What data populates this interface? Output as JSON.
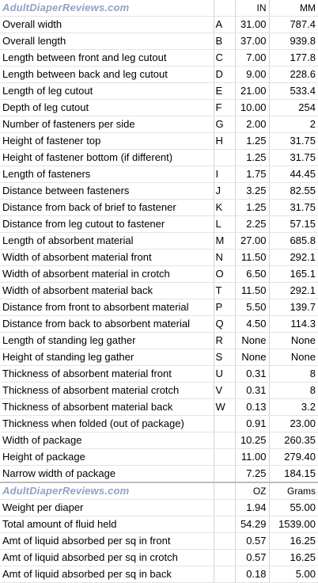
{
  "header": {
    "site": "AdultDiaperReviews.com",
    "unit_in": "IN",
    "unit_mm": "MM"
  },
  "dimensions": [
    {
      "label": "Overall width",
      "code": "A",
      "in": "31.00",
      "mm": "787.4"
    },
    {
      "label": "Overall length",
      "code": "B",
      "in": "37.00",
      "mm": "939.8"
    },
    {
      "label": "Length between front and leg cutout",
      "code": "C",
      "in": "7.00",
      "mm": "177.8"
    },
    {
      "label": "Length between back and leg cutout",
      "code": "D",
      "in": "9.00",
      "mm": "228.6"
    },
    {
      "label": "Length of leg cutout",
      "code": "E",
      "in": "21.00",
      "mm": "533.4"
    },
    {
      "label": "Depth of leg cutout",
      "code": "F",
      "in": "10.00",
      "mm": "254"
    },
    {
      "label": "Number of fasteners per side",
      "code": "G",
      "in": "2.00",
      "mm": "2"
    },
    {
      "label": "Height of fastener top",
      "code": "H",
      "in": "1.25",
      "mm": "31.75"
    },
    {
      "label": "Height of fastener bottom (if different)",
      "code": "",
      "in": "1.25",
      "mm": "31.75"
    },
    {
      "label": "Length of fasteners",
      "code": "I",
      "in": "1.75",
      "mm": "44.45"
    },
    {
      "label": "Distance between fasteners",
      "code": "J",
      "in": "3.25",
      "mm": "82.55"
    },
    {
      "label": "Distance from back of brief to fastener",
      "code": "K",
      "in": "1.25",
      "mm": "31.75"
    },
    {
      "label": "Distance from leg cutout to fastener",
      "code": "L",
      "in": "2.25",
      "mm": "57.15"
    },
    {
      "label": "Length of absorbent material",
      "code": "M",
      "in": "27.00",
      "mm": "685.8"
    },
    {
      "label": "Width of absorbent material front",
      "code": "N",
      "in": "11.50",
      "mm": "292.1"
    },
    {
      "label": "Width of absorbent material in crotch",
      "code": "O",
      "in": "6.50",
      "mm": "165.1"
    },
    {
      "label": "Width of absorbent material back",
      "code": "T",
      "in": "11.50",
      "mm": "292.1"
    },
    {
      "label": "Distance from front to absorbent material",
      "code": "P",
      "in": "5.50",
      "mm": "139.7"
    },
    {
      "label": "Distance from back to absorbent material",
      "code": "Q",
      "in": "4.50",
      "mm": "114.3"
    },
    {
      "label": "Length of standing leg gather",
      "code": "R",
      "in": "None",
      "mm": "None"
    },
    {
      "label": "Height of standing leg gather",
      "code": "S",
      "in": "None",
      "mm": "None"
    },
    {
      "label": "Thickness of absorbent material front",
      "code": "U",
      "in": "0.31",
      "mm": "8"
    },
    {
      "label": "Thickness of absorbent material crotch",
      "code": "V",
      "in": "0.31",
      "mm": "8"
    },
    {
      "label": "Thickness of absorbent material back",
      "code": "W",
      "in": "0.13",
      "mm": "3.2"
    },
    {
      "label": "Thickness when folded (out of package)",
      "code": "",
      "in": "0.91",
      "mm": "23.00"
    },
    {
      "label": "Width of package",
      "code": "",
      "in": "10.25",
      "mm": "260.35"
    },
    {
      "label": "Height of package",
      "code": "",
      "in": "11.00",
      "mm": "279.40"
    },
    {
      "label": "Narrow width of package",
      "code": "",
      "in": "7.25",
      "mm": "184.15"
    }
  ],
  "header2": {
    "site": "AdultDiaperReviews.com",
    "unit_oz": "OZ",
    "unit_g": "Grams"
  },
  "weights": [
    {
      "label": "Weight per diaper",
      "code": "",
      "oz": "1.94",
      "g": "55.00"
    },
    {
      "label": "Total amount of fluid held",
      "code": "",
      "oz": "54.29",
      "g": "1539.00"
    },
    {
      "label": "Amt of liquid absorbed per sq in front",
      "code": "",
      "oz": "0.57",
      "g": "16.25"
    },
    {
      "label": "Amt of liquid absorbed per sq in crotch",
      "code": "",
      "oz": "0.57",
      "g": "16.25"
    },
    {
      "label": "Amt of liquid absorbed per sq in back",
      "code": "",
      "oz": "0.18",
      "g": "5.00"
    }
  ]
}
